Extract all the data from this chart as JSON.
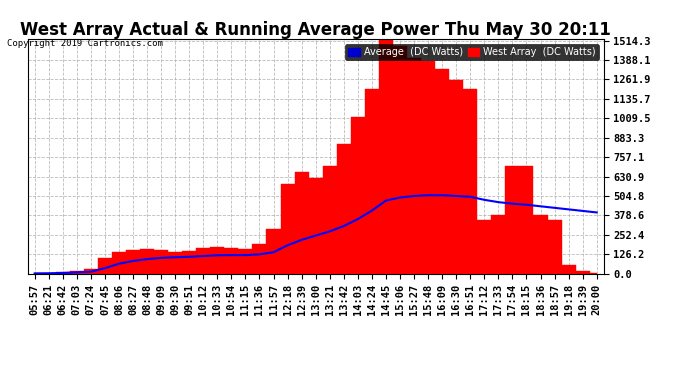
{
  "title": "West Array Actual & Running Average Power Thu May 30 20:11",
  "copyright": "Copyright 2019 Cartronics.com",
  "legend_avg": "Average  (DC Watts)",
  "legend_west": "West Array  (DC Watts)",
  "ylabel_ticks": [
    0.0,
    126.2,
    252.4,
    378.6,
    504.8,
    630.9,
    757.1,
    883.3,
    1009.5,
    1135.7,
    1261.9,
    1388.1,
    1514.3
  ],
  "ymax": 1514.3,
  "ymin": 0.0,
  "bg_color": "#ffffff",
  "plot_bg_color": "#ffffff",
  "grid_color": "#aaaaaa",
  "bar_color": "#ff0000",
  "avg_line_color": "#0000ff",
  "title_fontsize": 12,
  "tick_fontsize": 7.5,
  "x_tick_labels": [
    "05:57",
    "06:21",
    "06:42",
    "07:03",
    "07:24",
    "07:45",
    "08:06",
    "08:27",
    "08:48",
    "09:09",
    "09:30",
    "09:51",
    "10:12",
    "10:33",
    "10:54",
    "11:15",
    "11:36",
    "11:57",
    "12:18",
    "12:39",
    "13:00",
    "13:21",
    "13:42",
    "14:03",
    "14:24",
    "14:45",
    "15:06",
    "15:27",
    "15:48",
    "16:09",
    "16:30",
    "16:51",
    "17:12",
    "17:33",
    "17:54",
    "18:15",
    "18:36",
    "18:57",
    "19:18",
    "19:39",
    "20:00"
  ],
  "n_points": 41,
  "west_array_raw": [
    2,
    5,
    10,
    20,
    30,
    100,
    140,
    155,
    160,
    155,
    140,
    150,
    165,
    175,
    165,
    160,
    195,
    290,
    580,
    660,
    620,
    700,
    840,
    1020,
    1200,
    1520,
    1480,
    1400,
    1380,
    1330,
    1260,
    1200,
    350,
    380,
    700,
    700,
    380,
    350,
    60,
    20,
    2
  ],
  "running_avg_raw": [
    2,
    3,
    5,
    9,
    13,
    36,
    65,
    83,
    95,
    103,
    107,
    110,
    115,
    120,
    121,
    121,
    126,
    140,
    185,
    220,
    248,
    275,
    310,
    355,
    410,
    475,
    495,
    505,
    510,
    510,
    505,
    500,
    480,
    465,
    455,
    448,
    438,
    428,
    418,
    408,
    398
  ]
}
